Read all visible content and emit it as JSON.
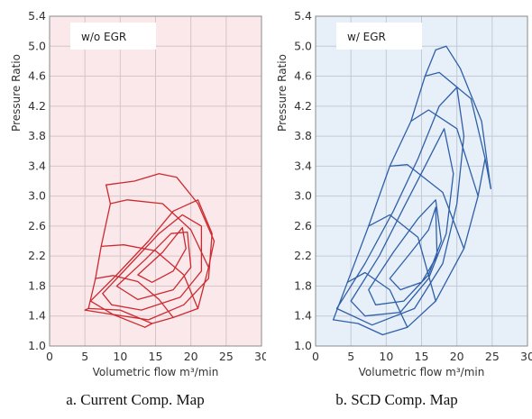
{
  "chart_data": [
    {
      "type": "line",
      "variant": "compressor-map",
      "legend_label": "w/o EGR",
      "caption": "a. Current Comp. Map",
      "xlabel": "Volumetric flow m³/min",
      "ylabel": "Pressure Ratio",
      "xlim": [
        0,
        30
      ],
      "ylim": [
        1.0,
        5.4
      ],
      "xticks": [
        0,
        5,
        10,
        15,
        20,
        25,
        30
      ],
      "yticks": [
        1.0,
        1.4,
        1.8,
        2.2,
        2.6,
        3.0,
        3.4,
        3.8,
        4.2,
        4.6,
        5.0,
        5.4
      ],
      "ytick_labels": [
        "1.0",
        "1.4",
        "1.8",
        "2.2",
        "2.6",
        "3.0",
        "3.4",
        "3.8",
        "4.2",
        "4.6",
        "5.0",
        "5.4"
      ],
      "grid": true,
      "colors": {
        "background": "#fbe8ea",
        "line": "#cc2a2f",
        "grid": "#d2c6c8",
        "legend_box": "#ffffff"
      },
      "speed_lines": [
        [
          [
            5.0,
            1.48
          ],
          [
            9.0,
            1.42
          ],
          [
            13.5,
            1.25
          ]
        ],
        [
          [
            5.5,
            1.5
          ],
          [
            10.0,
            1.48
          ],
          [
            14.5,
            1.3
          ]
        ],
        [
          [
            6.5,
            1.9
          ],
          [
            9.0,
            1.94
          ],
          [
            12.5,
            1.86
          ],
          [
            15.5,
            1.62
          ],
          [
            17.5,
            1.38
          ]
        ],
        [
          [
            7.3,
            2.33
          ],
          [
            10.5,
            2.35
          ],
          [
            15.0,
            2.27
          ],
          [
            19.0,
            1.95
          ],
          [
            21.0,
            1.5
          ]
        ],
        [
          [
            8.6,
            2.9
          ],
          [
            11.0,
            2.95
          ],
          [
            16.0,
            2.9
          ],
          [
            20.0,
            2.55
          ],
          [
            22.5,
            2.05
          ]
        ],
        [
          [
            8.0,
            3.15
          ],
          [
            12.0,
            3.2
          ],
          [
            15.5,
            3.3
          ],
          [
            18.0,
            3.25
          ],
          [
            21.0,
            2.9
          ],
          [
            23.3,
            2.4
          ]
        ]
      ],
      "surge_line": [
        [
          5.0,
          1.48
        ],
        [
          5.5,
          1.5
        ],
        [
          6.5,
          1.9
        ],
        [
          7.3,
          2.33
        ],
        [
          8.6,
          2.9
        ],
        [
          8.0,
          3.15
        ]
      ],
      "choke_line": [
        [
          13.5,
          1.25
        ],
        [
          14.5,
          1.3
        ],
        [
          17.5,
          1.38
        ],
        [
          21.0,
          1.5
        ],
        [
          22.5,
          2.05
        ],
        [
          23.3,
          2.4
        ]
      ],
      "efficiency_islands": [
        [
          [
            5.8,
            1.6
          ],
          [
            9.5,
            1.95
          ],
          [
            14.0,
            2.4
          ],
          [
            17.5,
            2.8
          ],
          [
            21.0,
            2.95
          ],
          [
            23.0,
            2.5
          ],
          [
            22.5,
            1.9
          ],
          [
            19.0,
            1.55
          ],
          [
            14.0,
            1.35
          ],
          [
            9.0,
            1.42
          ],
          [
            5.8,
            1.6
          ]
        ],
        [
          [
            7.5,
            1.7
          ],
          [
            11.5,
            2.1
          ],
          [
            15.5,
            2.5
          ],
          [
            18.8,
            2.75
          ],
          [
            21.5,
            2.6
          ],
          [
            21.5,
            2.0
          ],
          [
            18.5,
            1.65
          ],
          [
            13.0,
            1.48
          ],
          [
            8.8,
            1.55
          ],
          [
            7.5,
            1.7
          ]
        ],
        [
          [
            9.5,
            1.8
          ],
          [
            13.5,
            2.15
          ],
          [
            17.2,
            2.5
          ],
          [
            19.5,
            2.52
          ],
          [
            20.0,
            2.05
          ],
          [
            17.5,
            1.75
          ],
          [
            12.5,
            1.62
          ],
          [
            9.5,
            1.8
          ]
        ],
        [
          [
            12.5,
            1.95
          ],
          [
            16.0,
            2.25
          ],
          [
            18.8,
            2.58
          ],
          [
            19.3,
            2.3
          ],
          [
            17.5,
            2.0
          ],
          [
            14.5,
            1.85
          ],
          [
            12.5,
            1.95
          ]
        ]
      ]
    },
    {
      "type": "line",
      "variant": "compressor-map",
      "legend_label": "w/ EGR",
      "caption": "b. SCD Comp. Map",
      "xlabel": "Volumetric flow m³/min",
      "ylabel": "Pressure Ratio",
      "xlim": [
        0,
        30
      ],
      "ylim": [
        1.0,
        5.4
      ],
      "xticks": [
        0,
        5,
        10,
        15,
        20,
        25,
        30
      ],
      "yticks": [
        1.0,
        1.4,
        1.8,
        2.2,
        2.6,
        3.0,
        3.4,
        3.8,
        4.2,
        4.6,
        5.0,
        5.4
      ],
      "ytick_labels": [
        "1.0",
        "1.4",
        "1.8",
        "2.2",
        "2.6",
        "3.0",
        "3.4",
        "3.8",
        "4.2",
        "4.6",
        "5.0",
        "5.4"
      ],
      "grid": true,
      "colors": {
        "background": "#e7f0f9",
        "line": "#2f5fa8",
        "grid": "#c2cad6",
        "legend_box": "#ffffff"
      },
      "speed_lines": [
        [
          [
            2.5,
            1.35
          ],
          [
            6.0,
            1.3
          ],
          [
            9.5,
            1.15
          ]
        ],
        [
          [
            4.5,
            1.85
          ],
          [
            7.0,
            1.98
          ],
          [
            10.5,
            1.75
          ],
          [
            13.0,
            1.25
          ]
        ],
        [
          [
            7.5,
            2.6
          ],
          [
            10.5,
            2.75
          ],
          [
            14.5,
            2.45
          ],
          [
            17.0,
            1.6
          ]
        ],
        [
          [
            10.5,
            3.4
          ],
          [
            13.0,
            3.42
          ],
          [
            18.0,
            3.05
          ],
          [
            21.0,
            2.3
          ]
        ],
        [
          [
            13.5,
            4.0
          ],
          [
            16.0,
            4.15
          ],
          [
            20.0,
            3.9
          ],
          [
            23.0,
            3.0
          ]
        ],
        [
          [
            15.5,
            4.6
          ],
          [
            17.5,
            4.65
          ],
          [
            22.0,
            4.3
          ],
          [
            24.0,
            3.5
          ]
        ],
        [
          [
            17.0,
            4.95
          ],
          [
            18.5,
            5.0
          ],
          [
            20.5,
            4.7
          ],
          [
            23.5,
            4.0
          ],
          [
            24.8,
            3.1
          ]
        ]
      ],
      "surge_line": [
        [
          2.5,
          1.35
        ],
        [
          4.5,
          1.85
        ],
        [
          7.5,
          2.6
        ],
        [
          10.5,
          3.4
        ],
        [
          13.5,
          4.0
        ],
        [
          15.5,
          4.6
        ],
        [
          17.0,
          4.95
        ]
      ],
      "choke_line": [
        [
          9.5,
          1.15
        ],
        [
          13.0,
          1.25
        ],
        [
          17.0,
          1.6
        ],
        [
          21.0,
          2.3
        ],
        [
          23.0,
          3.0
        ],
        [
          24.0,
          3.5
        ],
        [
          24.8,
          3.1
        ]
      ],
      "efficiency_islands": [
        [
          [
            3.0,
            1.5
          ],
          [
            7.0,
            2.1
          ],
          [
            11.0,
            2.8
          ],
          [
            14.5,
            3.5
          ],
          [
            17.5,
            4.2
          ],
          [
            20.0,
            4.45
          ],
          [
            21.0,
            3.8
          ],
          [
            20.0,
            2.9
          ],
          [
            18.0,
            2.1
          ],
          [
            14.0,
            1.5
          ],
          [
            8.0,
            1.28
          ],
          [
            3.0,
            1.5
          ]
        ],
        [
          [
            5.0,
            1.6
          ],
          [
            9.0,
            2.2
          ],
          [
            12.5,
            2.85
          ],
          [
            15.5,
            3.4
          ],
          [
            18.2,
            3.9
          ],
          [
            19.5,
            3.3
          ],
          [
            18.5,
            2.5
          ],
          [
            16.0,
            1.9
          ],
          [
            12.0,
            1.45
          ],
          [
            7.0,
            1.4
          ],
          [
            5.0,
            1.6
          ]
        ],
        [
          [
            7.5,
            1.75
          ],
          [
            11.0,
            2.25
          ],
          [
            14.5,
            2.7
          ],
          [
            17.0,
            2.95
          ],
          [
            17.8,
            2.4
          ],
          [
            16.0,
            1.95
          ],
          [
            12.5,
            1.6
          ],
          [
            8.5,
            1.55
          ],
          [
            7.5,
            1.75
          ]
        ],
        [
          [
            10.5,
            1.9
          ],
          [
            13.5,
            2.25
          ],
          [
            16.0,
            2.55
          ],
          [
            17.0,
            2.85
          ],
          [
            17.2,
            2.2
          ],
          [
            15.0,
            1.85
          ],
          [
            12.0,
            1.75
          ],
          [
            10.5,
            1.9
          ]
        ]
      ]
    }
  ]
}
